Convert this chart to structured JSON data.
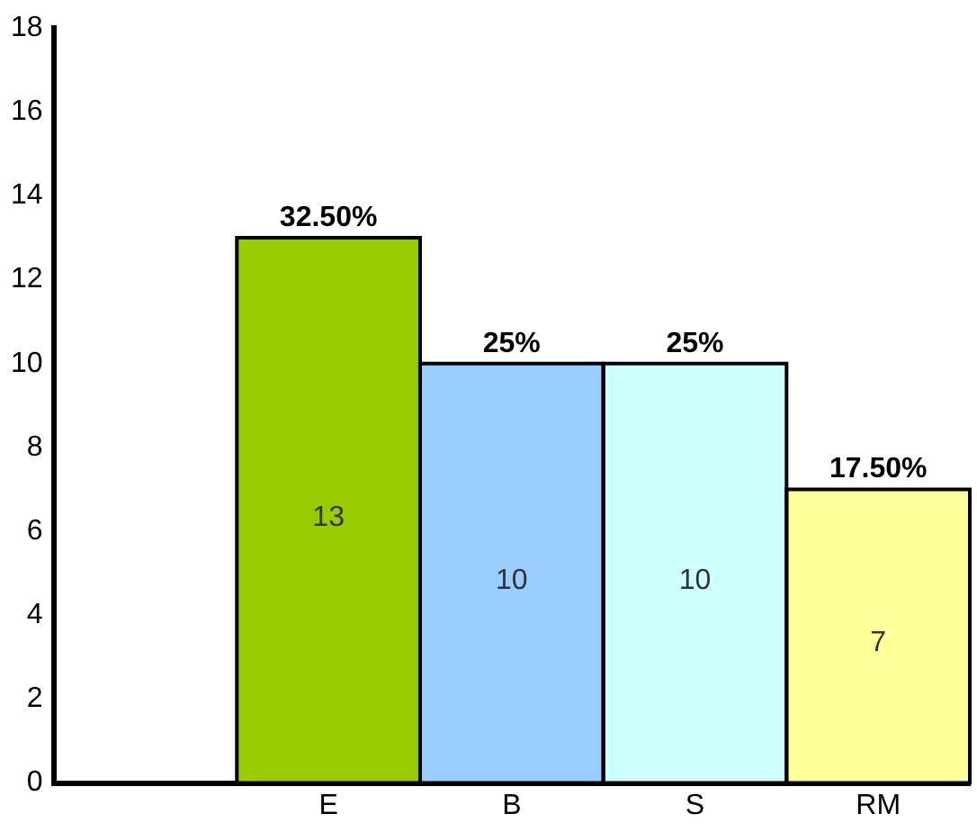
{
  "chart_data": {
    "type": "bar",
    "categories": [
      null,
      "E",
      "B",
      "S",
      "RM"
    ],
    "values": [
      null,
      13,
      10,
      10,
      7
    ],
    "colors": [
      "#ffffff",
      "#99cc00",
      "#99ccff",
      "#ccffff",
      "#ffff99"
    ],
    "ylim": [
      0,
      18
    ],
    "yticks": [
      0,
      2,
      4,
      6,
      8,
      10,
      12,
      14,
      16,
      18
    ],
    "data_labels": true,
    "annotations": [
      "32.50%",
      "25%",
      "25%",
      "17.50%"
    ]
  }
}
